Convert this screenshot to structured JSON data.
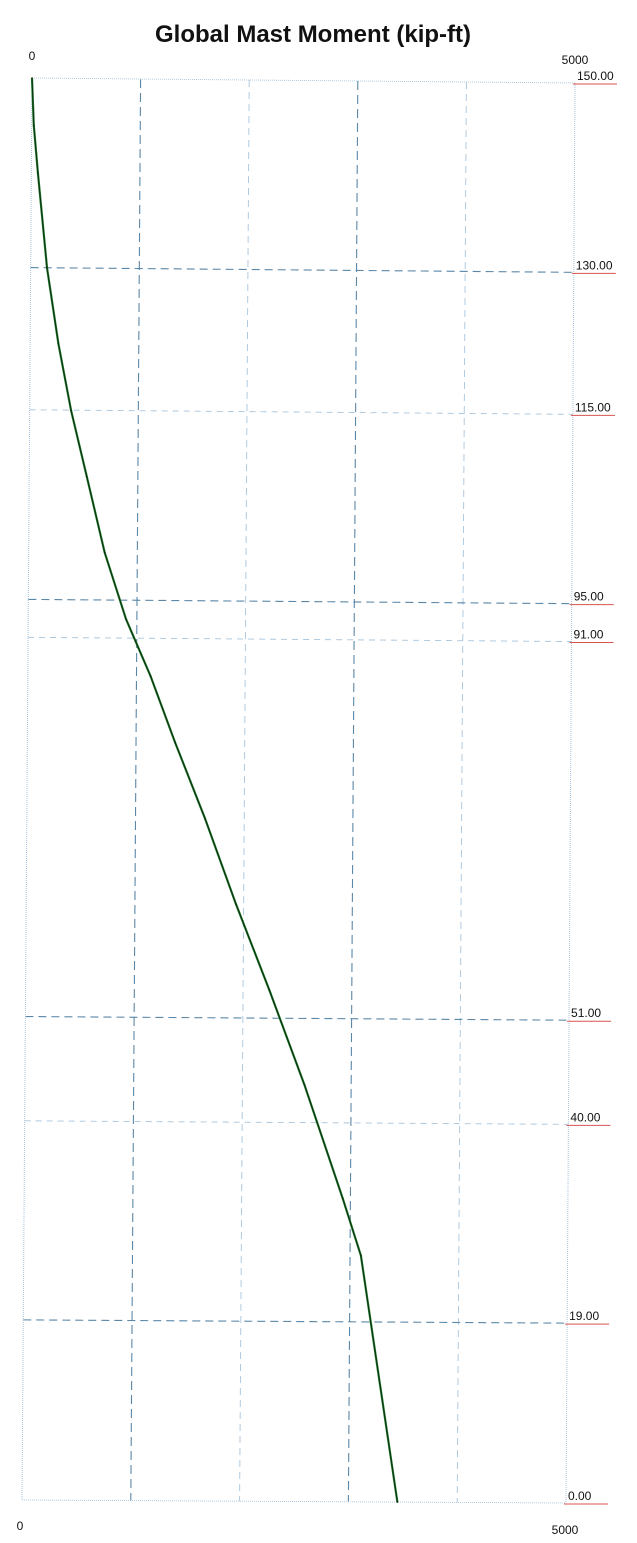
{
  "chart_data": {
    "type": "line",
    "title": "Global Mast Moment (kip-ft)",
    "x_ticks": {
      "top_left": "0",
      "top_right": "5000",
      "bottom_left": "0",
      "bottom_right": "5000"
    },
    "xlim": [
      0,
      5000
    ],
    "ylim": [
      0,
      150
    ],
    "elevation_labels": [
      "150.00",
      "130.00",
      "115.00",
      "95.00",
      "91.00",
      "51.00",
      "40.00",
      "19.00",
      "0.00"
    ],
    "elevations": [
      150,
      130,
      115,
      95,
      91,
      51,
      40,
      19,
      0
    ],
    "major_elevations": [
      130,
      95,
      51,
      19
    ],
    "vertical_grid": [
      {
        "value": 1000,
        "style": "dashed-major"
      },
      {
        "value": 2000,
        "style": "dashed-minor"
      },
      {
        "value": 3000,
        "style": "dashed-major"
      },
      {
        "value": 4000,
        "style": "dashed-minor"
      }
    ],
    "grid": true,
    "series": [
      {
        "x": [
          0,
          20,
          60,
          150,
          260,
          380,
          530,
          700,
          900,
          1130,
          1360,
          1640,
          1930,
          2240,
          2570,
          2930,
          3100,
          3450
        ],
        "y": [
          150,
          145,
          140,
          130,
          122,
          115,
          108,
          100,
          93,
          87,
          80,
          72,
          63,
          54,
          44,
          32,
          26,
          0
        ]
      }
    ],
    "colors": {
      "curve": "#1e7a2a",
      "curve_core": "#0c2a10",
      "grid_major": "#5b87a8",
      "grid_minor": "#a8c4dc",
      "frame": "#a8c4dc",
      "label_underline": "#d9534f"
    }
  }
}
